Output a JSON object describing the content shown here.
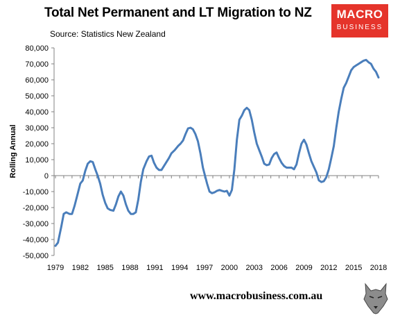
{
  "header": {
    "title": "Total Net Permanent and LT Migration to NZ",
    "subtitle": "Source: Statistics New Zealand"
  },
  "logo": {
    "line1": "MACRO",
    "line2": "BUSINESS"
  },
  "footer": {
    "url": "www.macrobusiness.com.au"
  },
  "colors": {
    "line": "#4a7ebb",
    "logo_bg": "#e5342b"
  },
  "chart_data": {
    "type": "line",
    "title": "Total Net Permanent and LT Migration to NZ",
    "ylabel": "Rolling Annual",
    "xlabel": "",
    "ylim": [
      -50000,
      80000
    ],
    "yticks": [
      -50000,
      -40000,
      -30000,
      -20000,
      -10000,
      0,
      10000,
      20000,
      30000,
      40000,
      50000,
      60000,
      70000,
      80000
    ],
    "ytick_labels": [
      "-50,000",
      "-40,000",
      "-30,000",
      "-20,000",
      "-10,000",
      "0",
      "10,000",
      "20,000",
      "30,000",
      "40,000",
      "50,000",
      "60,000",
      "70,000",
      "80,000"
    ],
    "xlim": [
      1979,
      2018
    ],
    "xtick_labels": [
      "1979",
      "1982",
      "1985",
      "1988",
      "1991",
      "1994",
      "1997",
      "2000",
      "2003",
      "2006",
      "2009",
      "2012",
      "2015",
      "2018"
    ],
    "grid": false,
    "legend": "none",
    "series": [
      {
        "x": [
          1979.0,
          1979.3,
          1979.7,
          1980.0,
          1980.3,
          1980.7,
          1981.0,
          1981.3,
          1981.6,
          1982.0,
          1982.3,
          1982.6,
          1982.9,
          1983.2,
          1983.5,
          1983.8,
          1984.1,
          1984.4,
          1984.7,
          1985.0,
          1985.3,
          1985.6,
          1986.0,
          1986.3,
          1986.6,
          1986.9,
          1987.2,
          1987.5,
          1987.8,
          1988.1,
          1988.4,
          1988.7,
          1989.0,
          1989.3,
          1989.6,
          1990.0,
          1990.3,
          1990.6,
          1990.9,
          1991.2,
          1991.5,
          1991.8,
          1992.1,
          1992.4,
          1992.7,
          1993.0,
          1993.4,
          1993.8,
          1994.1,
          1994.4,
          1994.7,
          1995.0,
          1995.3,
          1995.6,
          1995.9,
          1996.2,
          1996.5,
          1996.8,
          1997.0,
          1997.3,
          1997.6,
          1997.9,
          1998.2,
          1998.5,
          1998.8,
          1999.1,
          1999.4,
          1999.7,
          2000.0,
          2000.3,
          2000.6,
          2000.9,
          2001.2,
          2001.5,
          2001.8,
          2002.1,
          2002.4,
          2002.7,
          2003.0,
          2003.3,
          2003.6,
          2003.9,
          2004.2,
          2004.5,
          2004.8,
          2005.1,
          2005.4,
          2005.7,
          2006.0,
          2006.3,
          2006.6,
          2006.9,
          2007.2,
          2007.5,
          2007.8,
          2008.1,
          2008.4,
          2008.7,
          2009.0,
          2009.3,
          2009.6,
          2009.9,
          2010.2,
          2010.5,
          2010.8,
          2011.1,
          2011.4,
          2011.7,
          2012.0,
          2012.3,
          2012.6,
          2012.9,
          2013.2,
          2013.5,
          2013.8,
          2014.1,
          2014.4,
          2014.7,
          2015.0,
          2015.3,
          2015.6,
          2015.9,
          2016.2,
          2016.5,
          2016.8,
          2017.1,
          2017.4,
          2017.7,
          2018.0
        ],
        "values": [
          -44000,
          -42000,
          -32000,
          -24000,
          -23000,
          -24000,
          -24000,
          -19000,
          -13000,
          -5000,
          -3000,
          3000,
          7500,
          9000,
          8500,
          4000,
          0,
          -5000,
          -12000,
          -17000,
          -20500,
          -21500,
          -22000,
          -18000,
          -13000,
          -10000,
          -12500,
          -18000,
          -22000,
          -24000,
          -24000,
          -23000,
          -15000,
          -4000,
          4000,
          9000,
          12000,
          12500,
          8000,
          5000,
          3500,
          3500,
          6000,
          8500,
          11000,
          14000,
          16000,
          18500,
          20000,
          22000,
          26000,
          29500,
          30000,
          29000,
          26000,
          21500,
          14000,
          5000,
          1000,
          -5000,
          -10000,
          -11000,
          -10500,
          -9500,
          -9000,
          -9500,
          -10000,
          -9500,
          -12500,
          -9000,
          4000,
          22500,
          35000,
          37500,
          41000,
          42500,
          41000,
          35000,
          27000,
          20000,
          16000,
          12000,
          7500,
          6500,
          7000,
          11000,
          13500,
          14500,
          11000,
          8000,
          6000,
          5000,
          5000,
          5000,
          4000,
          7000,
          14000,
          20000,
          22500,
          19500,
          14000,
          9000,
          5500,
          2000,
          -3000,
          -4000,
          -3500,
          -1000,
          4000,
          11000,
          18500,
          30000,
          40000,
          48000,
          55000,
          58000,
          62000,
          66000,
          68000,
          69000,
          70000,
          71000,
          72000,
          72500,
          71000,
          70000,
          67000,
          65000,
          61500
        ]
      }
    ]
  }
}
